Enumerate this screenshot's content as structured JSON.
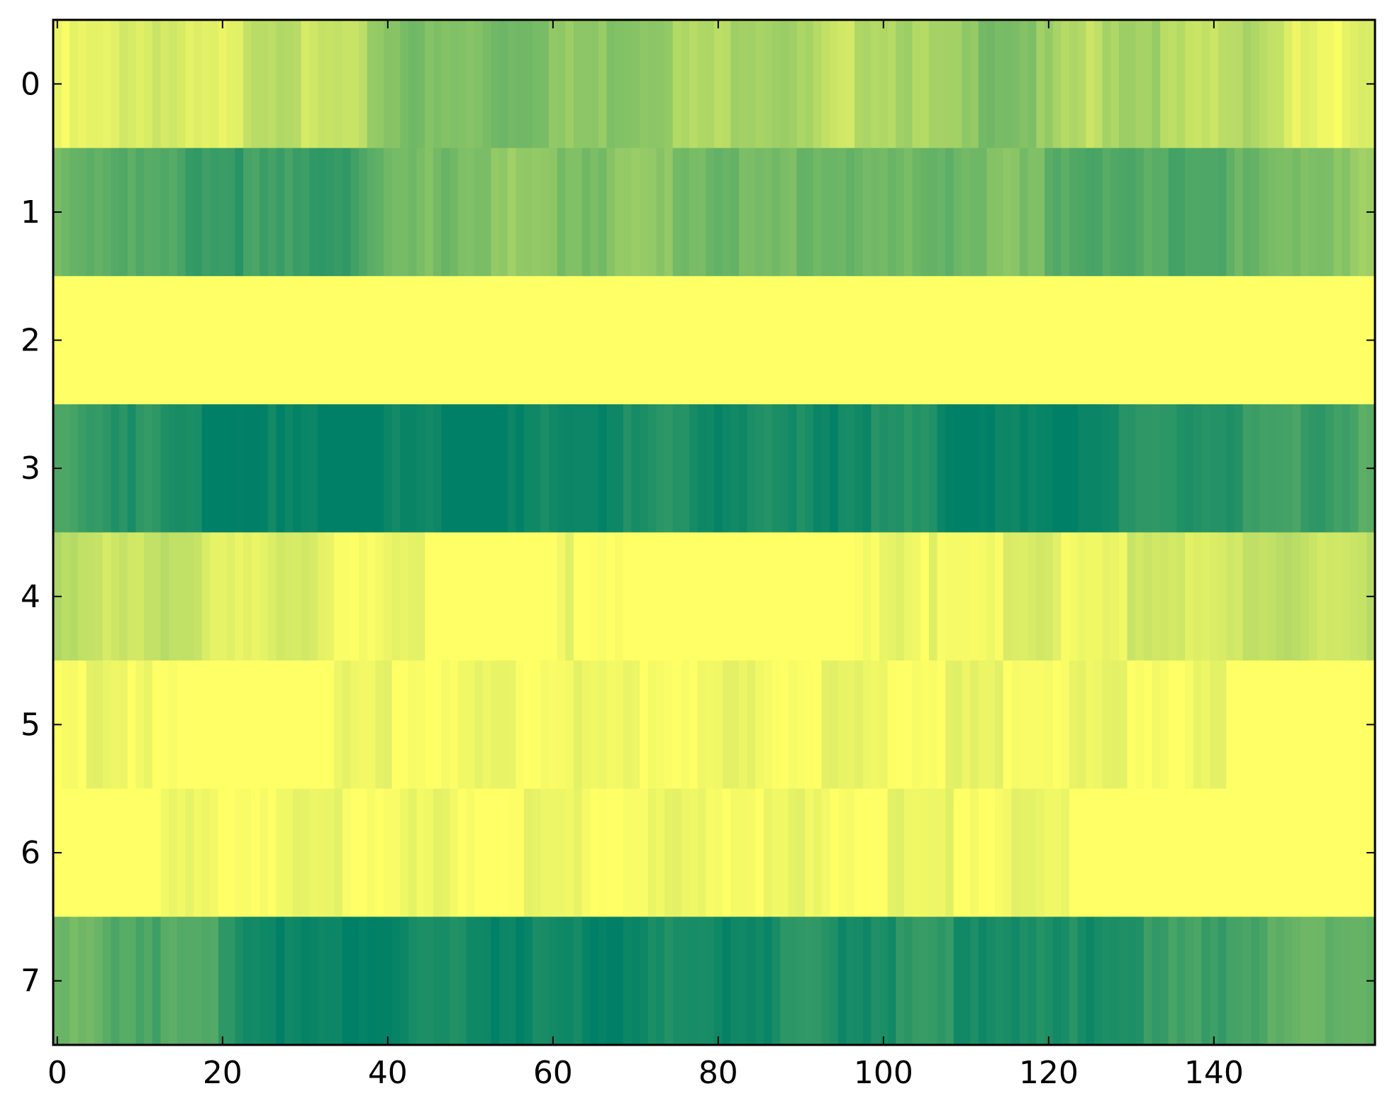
{
  "chart_data": {
    "type": "heatmap",
    "title": "",
    "xlabel": "",
    "ylabel": "",
    "x_ticks": [
      "0",
      "20",
      "40",
      "60",
      "80",
      "100",
      "120",
      "140"
    ],
    "y_ticks": [
      "0",
      "1",
      "2",
      "3",
      "4",
      "5",
      "6",
      "7"
    ],
    "x_count": 160,
    "xlim": [
      -0.5,
      159.5
    ],
    "ylim": [
      7.5,
      -0.5
    ],
    "grid": false,
    "colormap": "summer_r",
    "colormap_low": "#008066",
    "colormap_high": "#ffff66",
    "value_range": [
      0,
      1
    ],
    "rows": [
      {
        "row": 0,
        "description": "light green-yellow band",
        "profile": [
          [
            0,
            0.95
          ],
          [
            5,
            0.9
          ],
          [
            10,
            0.92
          ],
          [
            15,
            0.85
          ],
          [
            20,
            0.9
          ],
          [
            25,
            0.82
          ],
          [
            30,
            0.8
          ],
          [
            35,
            0.78
          ],
          [
            40,
            0.6
          ],
          [
            45,
            0.5
          ],
          [
            50,
            0.55
          ],
          [
            55,
            0.5
          ],
          [
            60,
            0.6
          ],
          [
            65,
            0.58
          ],
          [
            70,
            0.62
          ],
          [
            75,
            0.7
          ],
          [
            80,
            0.72
          ],
          [
            85,
            0.75
          ],
          [
            90,
            0.65
          ],
          [
            95,
            0.8
          ],
          [
            100,
            0.78
          ],
          [
            105,
            0.68
          ],
          [
            110,
            0.58
          ],
          [
            115,
            0.55
          ],
          [
            120,
            0.6
          ],
          [
            125,
            0.78
          ],
          [
            130,
            0.7
          ],
          [
            135,
            0.72
          ],
          [
            140,
            0.8
          ],
          [
            145,
            0.75
          ],
          [
            150,
            0.9
          ],
          [
            155,
            0.95
          ],
          [
            159,
            0.95
          ]
        ]
      },
      {
        "row": 1,
        "description": "medium green band",
        "profile": [
          [
            0,
            0.5
          ],
          [
            5,
            0.45
          ],
          [
            10,
            0.35
          ],
          [
            15,
            0.3
          ],
          [
            20,
            0.28
          ],
          [
            25,
            0.25
          ],
          [
            30,
            0.25
          ],
          [
            35,
            0.3
          ],
          [
            40,
            0.42
          ],
          [
            45,
            0.5
          ],
          [
            50,
            0.55
          ],
          [
            55,
            0.6
          ],
          [
            60,
            0.55
          ],
          [
            65,
            0.55
          ],
          [
            70,
            0.6
          ],
          [
            75,
            0.55
          ],
          [
            80,
            0.5
          ],
          [
            85,
            0.45
          ],
          [
            90,
            0.5
          ],
          [
            95,
            0.48
          ],
          [
            100,
            0.45
          ],
          [
            105,
            0.45
          ],
          [
            110,
            0.5
          ],
          [
            115,
            0.52
          ],
          [
            120,
            0.45
          ],
          [
            125,
            0.35
          ],
          [
            130,
            0.32
          ],
          [
            135,
            0.38
          ],
          [
            140,
            0.4
          ],
          [
            145,
            0.42
          ],
          [
            150,
            0.55
          ],
          [
            155,
            0.6
          ],
          [
            159,
            0.65
          ]
        ]
      },
      {
        "row": 2,
        "description": "bright yellow band",
        "profile": [
          [
            0,
            1.0
          ],
          [
            159,
            1.0
          ]
        ]
      },
      {
        "row": 3,
        "description": "dark teal-green band",
        "profile": [
          [
            0,
            0.32
          ],
          [
            5,
            0.25
          ],
          [
            10,
            0.2
          ],
          [
            15,
            0.12
          ],
          [
            20,
            0.08
          ],
          [
            25,
            0.04
          ],
          [
            30,
            0.02
          ],
          [
            35,
            0.02
          ],
          [
            40,
            0.06
          ],
          [
            45,
            0.08
          ],
          [
            50,
            0.05
          ],
          [
            55,
            0.03
          ],
          [
            60,
            0.08
          ],
          [
            65,
            0.1
          ],
          [
            70,
            0.12
          ],
          [
            75,
            0.15
          ],
          [
            80,
            0.14
          ],
          [
            85,
            0.12
          ],
          [
            90,
            0.1
          ],
          [
            95,
            0.13
          ],
          [
            100,
            0.16
          ],
          [
            105,
            0.14
          ],
          [
            110,
            0.07
          ],
          [
            115,
            0.05
          ],
          [
            120,
            0.04
          ],
          [
            125,
            0.1
          ],
          [
            130,
            0.14
          ],
          [
            135,
            0.18
          ],
          [
            140,
            0.2
          ],
          [
            145,
            0.22
          ],
          [
            150,
            0.25
          ],
          [
            155,
            0.32
          ],
          [
            159,
            0.35
          ]
        ]
      },
      {
        "row": 4,
        "description": "yellow band with light green edges",
        "profile": [
          [
            0,
            0.78
          ],
          [
            5,
            0.8
          ],
          [
            10,
            0.82
          ],
          [
            15,
            0.85
          ],
          [
            20,
            0.88
          ],
          [
            25,
            0.9
          ],
          [
            30,
            0.92
          ],
          [
            35,
            0.97
          ],
          [
            40,
            0.98
          ],
          [
            45,
            1.0
          ],
          [
            60,
            1.0
          ],
          [
            65,
            0.99
          ],
          [
            70,
            1.0
          ],
          [
            95,
            1.0
          ],
          [
            100,
            0.97
          ],
          [
            105,
            1.0
          ],
          [
            110,
            0.93
          ],
          [
            115,
            0.95
          ],
          [
            120,
            0.92
          ],
          [
            125,
            0.97
          ],
          [
            130,
            0.9
          ],
          [
            135,
            0.88
          ],
          [
            140,
            0.86
          ],
          [
            145,
            0.83
          ],
          [
            150,
            0.8
          ],
          [
            155,
            0.82
          ],
          [
            159,
            0.8
          ]
        ]
      },
      {
        "row": 5,
        "description": "bright yellow band",
        "profile": [
          [
            0,
            1.0
          ],
          [
            4,
            0.99
          ],
          [
            7,
            0.98
          ],
          [
            9,
            1.0
          ],
          [
            15,
            0.99
          ],
          [
            16,
            1.0
          ],
          [
            140,
            0.99
          ],
          [
            142,
            1.0
          ],
          [
            159,
            1.0
          ]
        ]
      },
      {
        "row": 6,
        "description": "bright yellow band",
        "profile": [
          [
            0,
            1.0
          ],
          [
            122,
            0.99
          ],
          [
            123,
            1.0
          ],
          [
            159,
            1.0
          ]
        ]
      },
      {
        "row": 7,
        "description": "dark green band",
        "profile": [
          [
            0,
            0.45
          ],
          [
            5,
            0.42
          ],
          [
            10,
            0.38
          ],
          [
            15,
            0.32
          ],
          [
            20,
            0.28
          ],
          [
            25,
            0.12
          ],
          [
            30,
            0.06
          ],
          [
            35,
            0.05
          ],
          [
            40,
            0.1
          ],
          [
            45,
            0.14
          ],
          [
            50,
            0.12
          ],
          [
            55,
            0.1
          ],
          [
            60,
            0.08
          ],
          [
            65,
            0.06
          ],
          [
            70,
            0.1
          ],
          [
            75,
            0.12
          ],
          [
            80,
            0.14
          ],
          [
            85,
            0.12
          ],
          [
            90,
            0.15
          ],
          [
            95,
            0.16
          ],
          [
            100,
            0.18
          ],
          [
            105,
            0.2
          ],
          [
            110,
            0.18
          ],
          [
            115,
            0.15
          ],
          [
            120,
            0.1
          ],
          [
            125,
            0.15
          ],
          [
            130,
            0.2
          ],
          [
            135,
            0.25
          ],
          [
            140,
            0.3
          ],
          [
            145,
            0.35
          ],
          [
            150,
            0.4
          ],
          [
            155,
            0.45
          ],
          [
            159,
            0.48
          ]
        ]
      }
    ]
  }
}
